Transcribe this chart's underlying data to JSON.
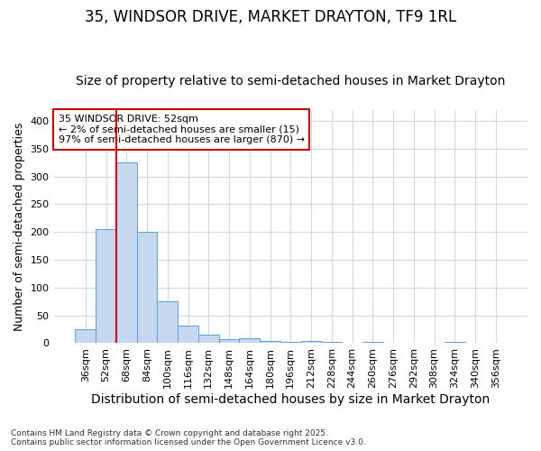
{
  "title": "35, WINDSOR DRIVE, MARKET DRAYTON, TF9 1RL",
  "subtitle": "Size of property relative to semi-detached houses in Market Drayton",
  "xlabel": "Distribution of semi-detached houses by size in Market Drayton",
  "ylabel": "Number of semi-detached properties",
  "bar_color": "#c5d8f0",
  "bar_edge_color": "#5a9fd4",
  "bins": [
    "36sqm",
    "52sqm",
    "68sqm",
    "84sqm",
    "100sqm",
    "116sqm",
    "132sqm",
    "148sqm",
    "164sqm",
    "180sqm",
    "196sqm",
    "212sqm",
    "228sqm",
    "244sqm",
    "260sqm",
    "276sqm",
    "292sqm",
    "308sqm",
    "324sqm",
    "340sqm",
    "356sqm"
  ],
  "values": [
    25,
    205,
    325,
    200,
    75,
    32,
    15,
    8,
    9,
    4,
    3,
    4,
    3,
    1,
    3,
    1,
    0,
    0,
    3,
    0,
    0
  ],
  "ylim": [
    0,
    420
  ],
  "yticks": [
    0,
    50,
    100,
    150,
    200,
    250,
    300,
    350,
    400
  ],
  "vline_x": 1.5,
  "vline_color": "#cc0000",
  "annotation_text": "35 WINDSOR DRIVE: 52sqm\n← 2% of semi-detached houses are smaller (15)\n97% of semi-detached houses are larger (870) →",
  "footer_line1": "Contains HM Land Registry data © Crown copyright and database right 2025.",
  "footer_line2": "Contains public sector information licensed under the Open Government Licence v3.0.",
  "background_color": "#ffffff",
  "grid_color": "#d0d8e8",
  "title_fontsize": 12,
  "subtitle_fontsize": 10,
  "tick_fontsize": 8,
  "ylabel_fontsize": 9,
  "xlabel_fontsize": 10
}
